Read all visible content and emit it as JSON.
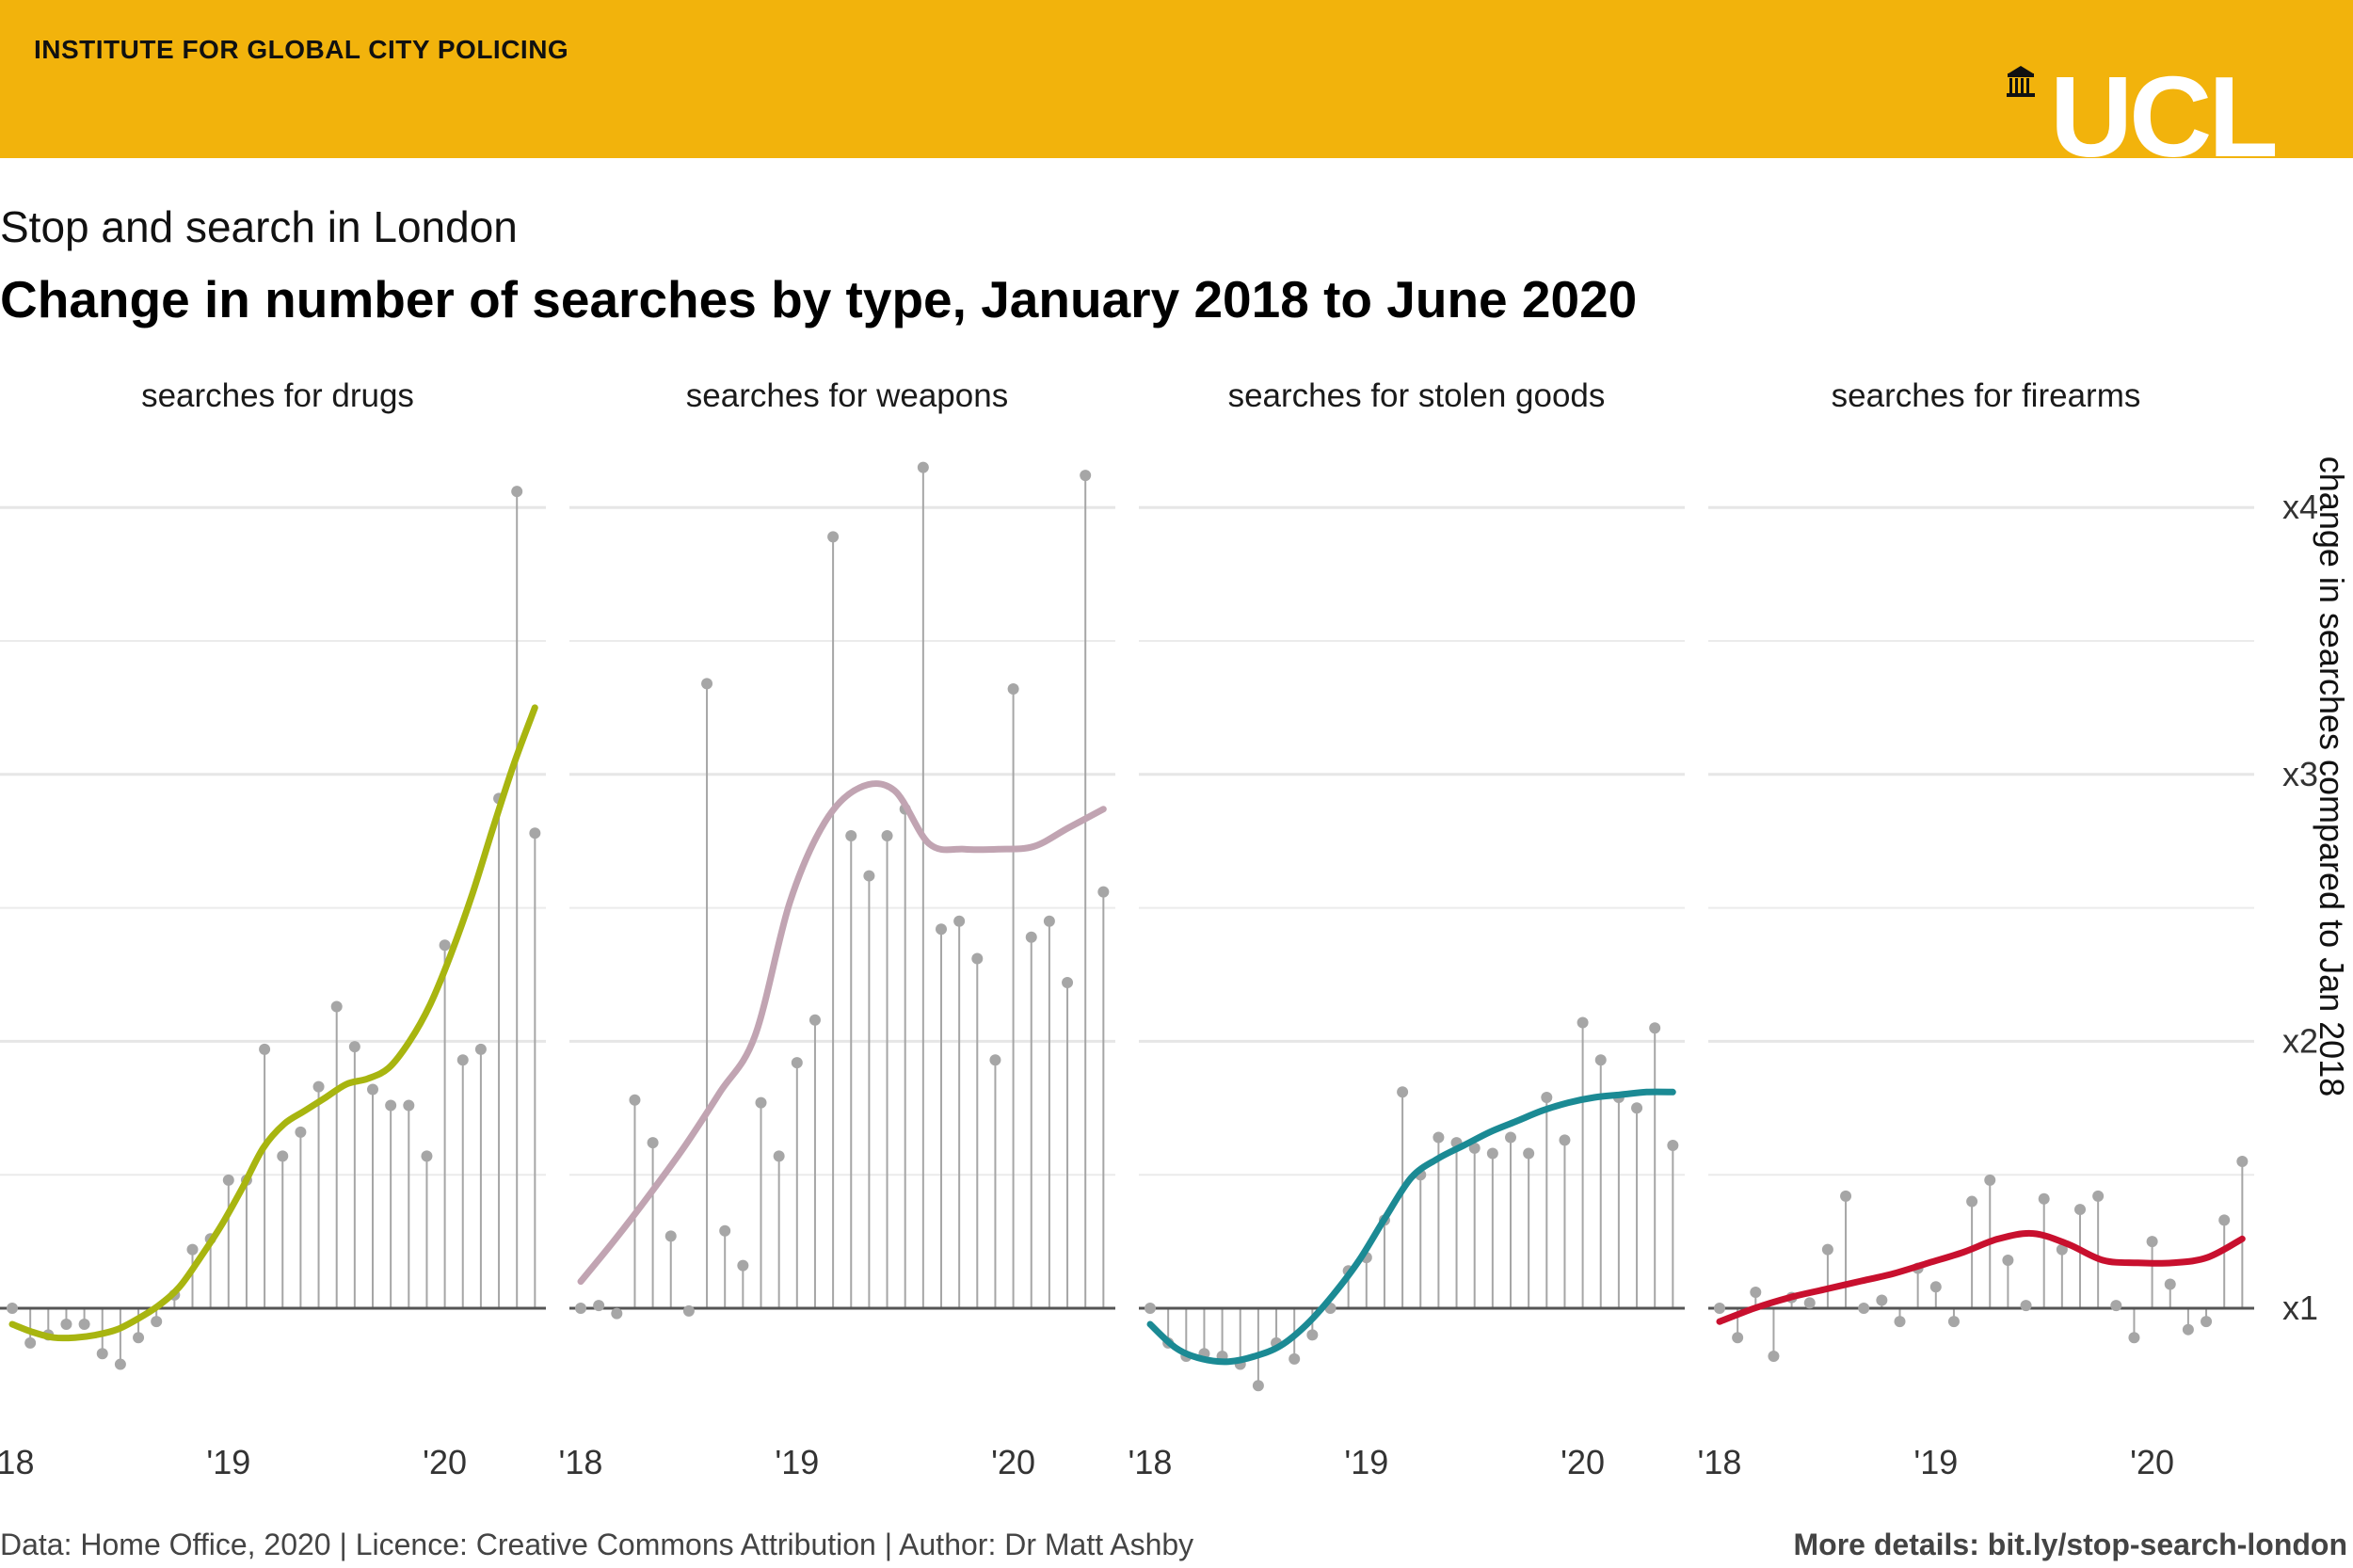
{
  "header": {
    "institute": "INSTITUTE FOR GLOBAL CITY POLICING",
    "logo_text": "UCL",
    "banner_color": "#f2b30c"
  },
  "subtitle": "Stop and search in London",
  "title": "Change in number of searches by type, January 2018 to June 2020",
  "footer": {
    "left": "Data: Home Office, 2020 | Licence: Creative Commons Attribution | Author: Dr Matt Ashby",
    "right": "More details: bit.ly/stop-search-london"
  },
  "chart_data": {
    "type": "line",
    "description_type": "faceted lollipop with smoothed trend line",
    "ylabel": "change in searches compared to Jan 2018",
    "y_ticks": [
      {
        "value": 1,
        "label": "x1"
      },
      {
        "value": 2,
        "label": "x2"
      },
      {
        "value": 3,
        "label": "x3"
      },
      {
        "value": 4,
        "label": "x4"
      }
    ],
    "ylim": [
      0.6,
      4.3
    ],
    "x_ticks": [
      {
        "month": 0,
        "label": "'18"
      },
      {
        "month": 12,
        "label": "'19"
      },
      {
        "month": 24,
        "label": "'20"
      }
    ],
    "x_unit": "months since January 2018",
    "baseline": 1,
    "grid": true,
    "panels": [
      {
        "name": "searches for drugs",
        "color": "#a8b510",
        "months": [
          0,
          1,
          2,
          3,
          4,
          5,
          6,
          7,
          8,
          9,
          10,
          11,
          12,
          13,
          14,
          15,
          16,
          17,
          18,
          19,
          20,
          21,
          22,
          23,
          24,
          25,
          26,
          27,
          28,
          29
        ],
        "values": [
          1.0,
          0.87,
          0.9,
          0.94,
          0.94,
          0.83,
          0.79,
          0.89,
          0.95,
          1.05,
          1.22,
          1.26,
          1.48,
          1.48,
          1.97,
          1.57,
          1.66,
          1.83,
          2.13,
          1.98,
          1.82,
          1.76,
          1.76,
          1.57,
          2.36,
          1.93,
          1.97,
          2.91,
          4.06,
          2.78
        ],
        "trend": [
          0.94,
          0.91,
          0.89,
          0.89,
          0.9,
          0.92,
          0.96,
          1.01,
          1.08,
          1.19,
          1.31,
          1.45,
          1.6,
          1.69,
          1.74,
          1.79,
          1.84,
          1.86,
          1.9,
          2.0,
          2.14,
          2.33,
          2.55,
          2.8,
          3.04,
          3.25
        ]
      },
      {
        "name": "searches for weapons",
        "color": "#c1a4b2",
        "months": [
          0,
          1,
          2,
          3,
          4,
          5,
          6,
          7,
          8,
          9,
          10,
          11,
          12,
          13,
          14,
          15,
          16,
          17,
          18,
          19,
          20,
          21,
          22,
          23,
          24,
          25,
          26,
          27,
          28,
          29
        ],
        "values": [
          1.0,
          1.01,
          0.98,
          1.78,
          1.62,
          1.27,
          0.99,
          3.34,
          1.29,
          1.16,
          1.77,
          1.57,
          1.92,
          2.08,
          3.89,
          2.77,
          2.62,
          2.77,
          2.87,
          4.15,
          2.42,
          2.45,
          2.31,
          1.93,
          3.32,
          2.39,
          2.45,
          2.22,
          4.12,
          2.56
        ],
        "trend": [
          1.1,
          1.26,
          1.43,
          1.61,
          1.81,
          2.02,
          2.52,
          2.82,
          2.95,
          2.94,
          2.74,
          2.72,
          2.72,
          2.73,
          2.8,
          2.87
        ]
      },
      {
        "name": "searches for stolen goods",
        "color": "#1b8a94",
        "months": [
          0,
          1,
          2,
          3,
          4,
          5,
          6,
          7,
          8,
          9,
          10,
          11,
          12,
          13,
          14,
          15,
          16,
          17,
          18,
          19,
          20,
          21,
          22,
          23,
          24,
          25,
          26,
          27,
          28,
          29
        ],
        "values": [
          1.0,
          0.87,
          0.82,
          0.83,
          0.82,
          0.79,
          0.71,
          0.87,
          0.81,
          0.9,
          1.0,
          1.14,
          1.19,
          1.33,
          1.81,
          1.5,
          1.64,
          1.62,
          1.6,
          1.58,
          1.64,
          1.58,
          1.79,
          1.63,
          2.07,
          1.93,
          1.79,
          1.75,
          2.05,
          1.61
        ],
        "trend": [
          0.94,
          0.85,
          0.81,
          0.8,
          0.82,
          0.86,
          0.94,
          1.05,
          1.18,
          1.34,
          1.49,
          1.56,
          1.61,
          1.66,
          1.7,
          1.74,
          1.77,
          1.79,
          1.8,
          1.81,
          1.81
        ]
      },
      {
        "name": "searches for firearms",
        "color": "#c8102e",
        "months": [
          0,
          1,
          2,
          3,
          4,
          5,
          6,
          7,
          8,
          9,
          10,
          11,
          12,
          13,
          14,
          15,
          16,
          17,
          18,
          19,
          20,
          21,
          22,
          23,
          24,
          25,
          26,
          27,
          28,
          29
        ],
        "values": [
          1.0,
          0.89,
          1.06,
          0.82,
          1.04,
          1.02,
          1.22,
          1.42,
          1.0,
          1.03,
          0.95,
          1.15,
          1.08,
          0.95,
          1.4,
          1.48,
          1.18,
          1.01,
          1.41,
          1.22,
          1.37,
          1.42,
          1.01,
          0.89,
          1.25,
          1.09,
          0.92,
          0.95,
          1.33,
          1.55
        ],
        "trend": [
          0.95,
          1.0,
          1.04,
          1.07,
          1.1,
          1.13,
          1.17,
          1.21,
          1.26,
          1.28,
          1.24,
          1.18,
          1.17,
          1.17,
          1.19,
          1.26
        ]
      }
    ]
  }
}
